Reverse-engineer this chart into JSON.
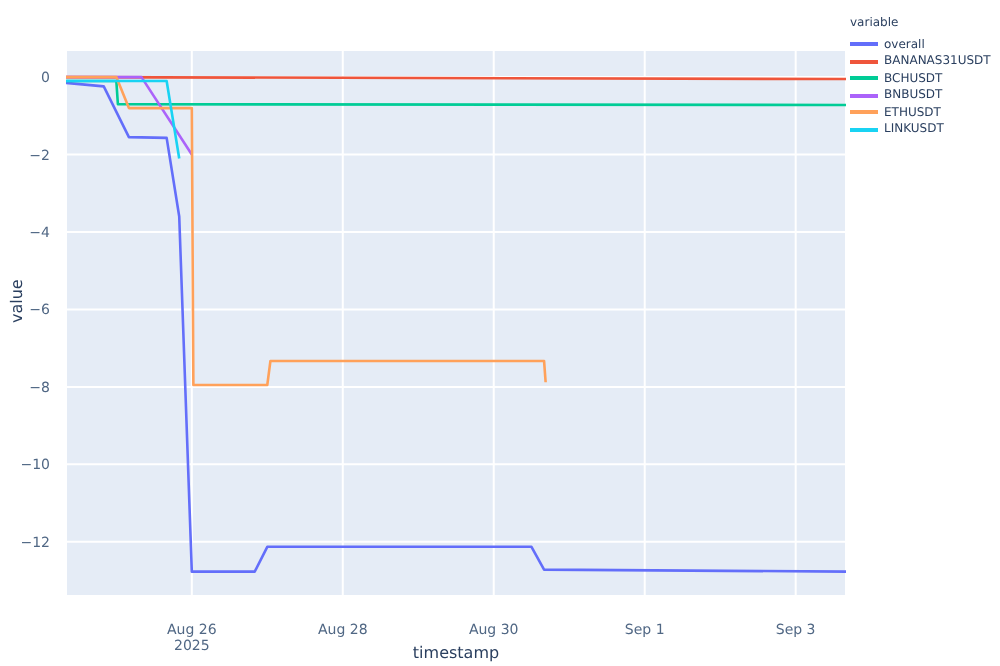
{
  "chart_data": {
    "type": "line",
    "xlabel": "timestamp",
    "ylabel": "value",
    "legend_title": "variable",
    "legend": "top right",
    "grid": true,
    "xlim": [
      "2025-08-24T08:00",
      "2025-09-03T16:00"
    ],
    "xticks": [
      {
        "value": "2025-08-26",
        "label": "Aug 26\n2025"
      },
      {
        "value": "2025-08-28",
        "label": "Aug 28"
      },
      {
        "value": "2025-08-30",
        "label": "Aug 30"
      },
      {
        "value": "2025-09-01",
        "label": "Sep 1"
      },
      {
        "value": "2025-09-03",
        "label": "Sep 3"
      }
    ],
    "ylim": [
      -13.4,
      0.7
    ],
    "yticks": [
      {
        "value": 0,
        "label": "0"
      },
      {
        "value": -2,
        "label": "−2"
      },
      {
        "value": -4,
        "label": "−4"
      },
      {
        "value": -6,
        "label": "−6"
      },
      {
        "value": -8,
        "label": "−8"
      },
      {
        "value": -10,
        "label": "−10"
      },
      {
        "value": -12,
        "label": "−12"
      }
    ],
    "series": [
      {
        "name": "overall",
        "color": "#636efa",
        "x": [
          "2025-08-24T08:00",
          "2025-08-24T20:00",
          "2025-08-25T04:00",
          "2025-08-25T16:00",
          "2025-08-25T20:00",
          "2025-08-26T00:00",
          "2025-08-26T20:00",
          "2025-08-27T00:00",
          "2025-08-30T12:00",
          "2025-08-30T16:00",
          "2025-09-03T16:00"
        ],
        "values": [
          -0.15,
          -0.24,
          -1.55,
          -1.57,
          -3.6,
          -12.77,
          -12.77,
          -12.13,
          -12.13,
          -12.72,
          -12.77
        ]
      },
      {
        "name": "BANANAS31USDT",
        "color": "#ef553b",
        "x": [
          "2025-08-24T08:00",
          "2025-09-03T16:00"
        ],
        "values": [
          0,
          -0.05
        ]
      },
      {
        "name": "BCHUSDT",
        "color": "#00cc96",
        "x": [
          "2025-08-24T08:00",
          "2025-08-25T00:00",
          "2025-08-25T00:30",
          "2025-09-03T16:00"
        ],
        "values": [
          -0.1,
          -0.1,
          -0.7,
          -0.72
        ]
      },
      {
        "name": "BNBUSDT",
        "color": "#ab63fa",
        "x": [
          "2025-08-24T08:00",
          "2025-08-25T08:00",
          "2025-08-26T00:00"
        ],
        "values": [
          0,
          0,
          -2
        ]
      },
      {
        "name": "ETHUSDT",
        "color": "#ffa15a",
        "x": [
          "2025-08-24T08:00",
          "2025-08-25T00:00",
          "2025-08-25T04:00",
          "2025-08-26T00:00",
          "2025-08-26T00:30",
          "2025-08-27T00:00",
          "2025-08-27T01:00",
          "2025-08-30T16:00",
          "2025-08-30T16:30"
        ],
        "values": [
          0,
          0,
          -0.8,
          -0.8,
          -7.95,
          -7.95,
          -7.33,
          -7.33,
          -7.88
        ]
      },
      {
        "name": "LINKUSDT",
        "color": "#19d3f3",
        "x": [
          "2025-08-24T08:00",
          "2025-08-25T16:00",
          "2025-08-25T20:00"
        ],
        "values": [
          -0.1,
          -0.1,
          -2.1
        ]
      }
    ]
  }
}
